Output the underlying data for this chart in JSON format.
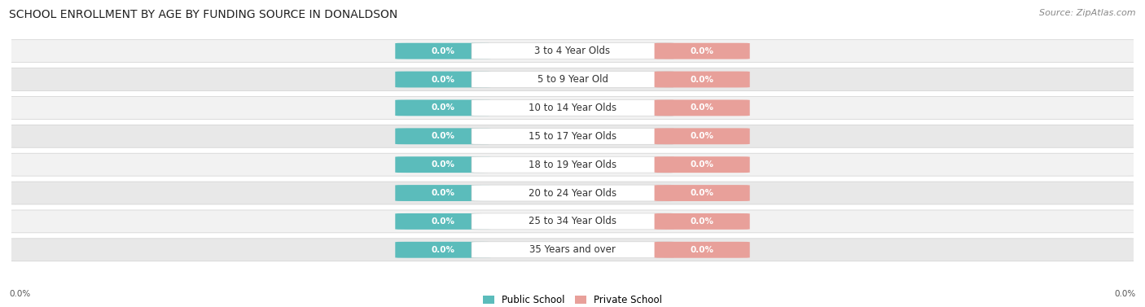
{
  "title": "SCHOOL ENROLLMENT BY AGE BY FUNDING SOURCE IN DONALDSON",
  "source": "Source: ZipAtlas.com",
  "categories": [
    "3 to 4 Year Olds",
    "5 to 9 Year Old",
    "10 to 14 Year Olds",
    "15 to 17 Year Olds",
    "18 to 19 Year Olds",
    "20 to 24 Year Olds",
    "25 to 34 Year Olds",
    "35 Years and over"
  ],
  "public_values": [
    0.0,
    0.0,
    0.0,
    0.0,
    0.0,
    0.0,
    0.0,
    0.0
  ],
  "private_values": [
    0.0,
    0.0,
    0.0,
    0.0,
    0.0,
    0.0,
    0.0,
    0.0
  ],
  "public_color": "#5bbcbb",
  "private_color": "#e8a09a",
  "row_bg_light": "#f2f2f2",
  "row_bg_dark": "#e8e8e8",
  "row_border_color": "#d0d0d0",
  "label_box_color": "#ffffff",
  "label_text_color": "#333333",
  "value_text_color": "#ffffff",
  "axis_label_left": "0.0%",
  "axis_label_right": "0.0%",
  "legend_public": "Public School",
  "legend_private": "Private School",
  "title_fontsize": 10,
  "source_fontsize": 8,
  "label_fontsize": 8.5,
  "value_fontsize": 7.5,
  "legend_fontsize": 8.5
}
